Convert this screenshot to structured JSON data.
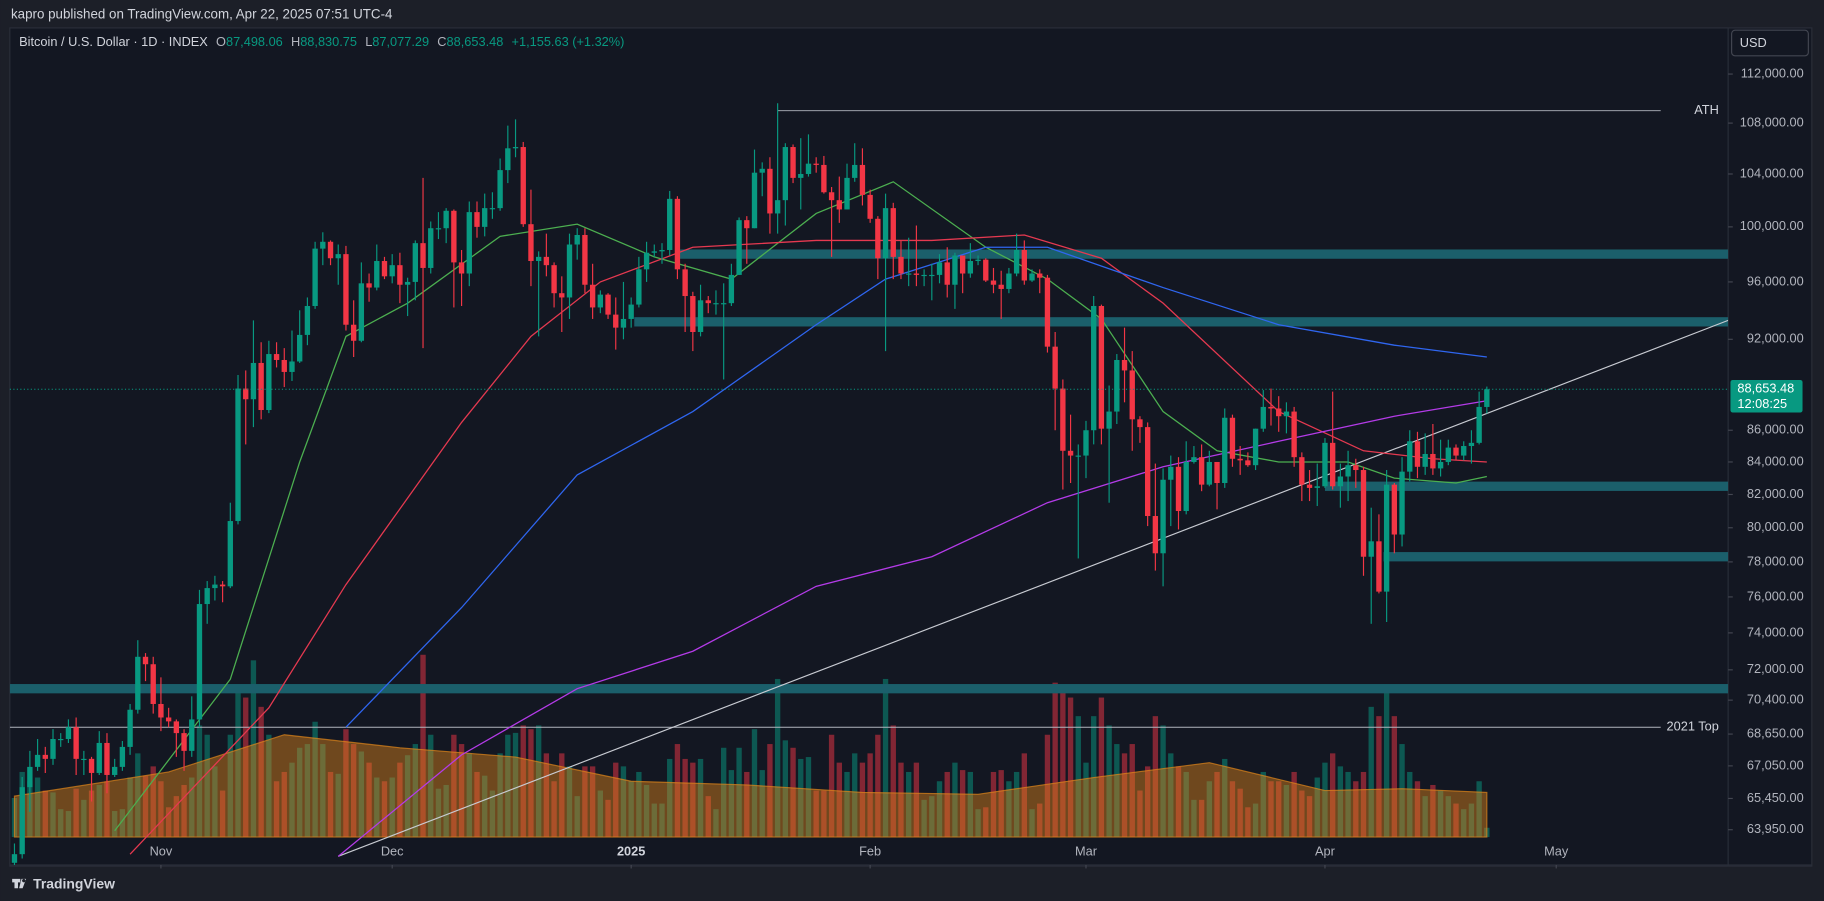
{
  "header": "kapro published on TradingView.com, Apr 22, 2025 07:51 UTC-4",
  "footer": "TradingView",
  "chart_data": {
    "type": "candlestick",
    "title": "Bitcoin / U.S. Dollar · 1D · INDEX",
    "legend": [
      {
        "label": "O",
        "value": "87,498.06"
      },
      {
        "label": "H",
        "value": "88,830.75"
      },
      {
        "label": "L",
        "value": "87,077.29"
      },
      {
        "label": "C",
        "value": "88,653.48"
      }
    ],
    "change": "+1,155.63 (+1.32%)",
    "currency": "USD",
    "up_color": "#089981",
    "down_color": "#f23645",
    "log": true,
    "xlim": [
      -0.6,
      222.3
    ],
    "xticks": [
      {
        "value": 19,
        "label": "Nov"
      },
      {
        "value": 49,
        "label": "Dec"
      },
      {
        "value": 80,
        "label": "2025"
      },
      {
        "value": 111,
        "label": "Feb"
      },
      {
        "value": 139,
        "label": "Mar"
      },
      {
        "value": 170,
        "label": "Apr"
      },
      {
        "value": 200,
        "label": "May"
      }
    ],
    "ylim": [
      62300,
      115900
    ],
    "yticks": [
      {
        "value": 112000,
        "label": "112,000.00"
      },
      {
        "value": 108000,
        "label": "108,000.00"
      },
      {
        "value": 104000,
        "label": "104,000.00"
      },
      {
        "value": 100000,
        "label": "100,000.00"
      },
      {
        "value": 96000,
        "label": "96,000.00"
      },
      {
        "value": 92000,
        "label": "92,000.00"
      },
      {
        "value": 86000,
        "label": "86,000.00"
      },
      {
        "value": 84000,
        "label": "84,000.00"
      },
      {
        "value": 82000,
        "label": "82,000.00"
      },
      {
        "value": 80000,
        "label": "80,000.00"
      },
      {
        "value": 78000,
        "label": "78,000.00"
      },
      {
        "value": 76000,
        "label": "76,000.00"
      },
      {
        "value": 74000,
        "label": "74,000.00"
      },
      {
        "value": 72000,
        "label": "72,000.00"
      },
      {
        "value": 70400,
        "label": "70,400.00"
      },
      {
        "value": 68650,
        "label": "68,650.00"
      },
      {
        "value": 67050,
        "label": "67,050.00"
      },
      {
        "value": 65450,
        "label": "65,450.00"
      },
      {
        "value": 63950,
        "label": "63,950.00"
      }
    ],
    "last_price": {
      "value": 88653.48,
      "label": "88,653.48",
      "countdown": "12:08:25",
      "color": "#089981"
    },
    "open": [
      62400,
      62800,
      66000,
      67000,
      67600,
      67400,
      68400,
      68400,
      69000,
      67400,
      67400,
      66700,
      68200,
      66600,
      67000,
      68000,
      69900,
      72700,
      72300,
      70200,
      69500,
      69300,
      68700,
      67800,
      69400,
      75600,
      76500,
      76700,
      76600,
      80400,
      88700,
      88000,
      90400,
      87300,
      91000,
      90600,
      89800,
      90500,
      92300,
      94300,
      98400,
      98900,
      97700,
      98000,
      93000,
      91900,
      95900,
      95600,
      97500,
      96400,
      97200,
      95800,
      96000,
      98800,
      97000,
      99900,
      99900,
      101200,
      97400,
      96600,
      101100,
      100000,
      101400,
      101400,
      104300,
      106000,
      106100,
      100200,
      97500,
      97800,
      97200,
      95200,
      94900,
      98700,
      99400,
      95800,
      94200,
      95100,
      93700,
      92800,
      93400,
      94400,
      96900,
      98100,
      98200,
      98300,
      102100,
      96900,
      95000,
      92500,
      94700,
      94500,
      94500,
      94500,
      96500,
      100500,
      99900,
      104100,
      104400,
      101000,
      102000,
      106100,
      103700,
      104000,
      104800,
      104700,
      102600,
      102000,
      101300,
      103700,
      104700,
      102400,
      100600,
      97700,
      101400,
      97800,
      96600,
      96600,
      96500,
      96500,
      96500,
      97400,
      95800,
      97900,
      96600,
      97500,
      97600,
      96100,
      95800,
      95500,
      96600,
      98300,
      96100,
      96600,
      96300,
      91500,
      88700,
      84700,
      84400,
      84400,
      86000,
      94300,
      86100,
      87200,
      90600,
      89900,
      86700,
      86200,
      80700,
      78500,
      82900,
      83700,
      81000,
      84000,
      84300,
      82600,
      84000,
      82700,
      86800,
      84200,
      84100,
      83800,
      86100,
      87500,
      87400,
      86900,
      87200,
      84300,
      82600,
      82400,
      82500,
      85200,
      82500,
      83100,
      83800,
      83500,
      78300,
      79200,
      76300,
      82600,
      79600,
      83400,
      85300,
      83700,
      84500,
      83600,
      84000,
      84900,
      84400,
      85000,
      85200,
      87498.06
    ],
    "high": [
      63300,
      66500,
      67800,
      68400,
      68000,
      68900,
      68700,
      69400,
      69500,
      67800,
      67500,
      68800,
      68700,
      67400,
      68300,
      70200,
      73600,
      72900,
      72700,
      71600,
      70000,
      69400,
      68900,
      70600,
      76400,
      76900,
      77200,
      76900,
      81500,
      89600,
      89900,
      93300,
      91800,
      91900,
      91800,
      91400,
      92600,
      94000,
      94900,
      98900,
      99600,
      99000,
      98700,
      98600,
      94700,
      97400,
      96600,
      98700,
      97800,
      98000,
      98100,
      96300,
      99000,
      103700,
      100400,
      101100,
      101400,
      101300,
      98300,
      101900,
      101900,
      102500,
      102600,
      105200,
      107800,
      108300,
      106500,
      102800,
      98200,
      99500,
      97400,
      96400,
      99500,
      99900,
      99900,
      97300,
      95400,
      95200,
      94900,
      96000,
      94900,
      97800,
      98900,
      98700,
      98800,
      102700,
      102300,
      97300,
      95300,
      95800,
      95000,
      95400,
      95900,
      97300,
      100700,
      100800,
      105900,
      104900,
      105300,
      109600,
      106400,
      106300,
      106800,
      107100,
      105300,
      105400,
      103000,
      103800,
      104800,
      106400,
      106000,
      102800,
      100800,
      102500,
      101800,
      99000,
      99200,
      100100,
      96900,
      97300,
      98000,
      98500,
      98100,
      97900,
      98800,
      97900,
      97700,
      97000,
      96800,
      97000,
      99500,
      99000,
      96900,
      96900,
      96500,
      92500,
      89300,
      87000,
      85100,
      86600,
      95000,
      94400,
      88900,
      91000,
      92800,
      91200,
      86900,
      86500,
      83900,
      83600,
      84400,
      84300,
      85300,
      85000,
      85100,
      84700,
      84000,
      87400,
      87000,
      85000,
      84600,
      86100,
      88600,
      88700,
      88200,
      87800,
      87500,
      84600,
      83500,
      83900,
      85500,
      88500,
      83900,
      84700,
      84200,
      83700,
      81200,
      80800,
      83500,
      82700,
      84300,
      86000,
      85900,
      85800,
      86400,
      85400,
      85400,
      85100,
      85300,
      86000,
      88500,
      88830.75
    ],
    "low": [
      62000,
      62600,
      64800,
      66800,
      66700,
      67100,
      68000,
      68200,
      66600,
      66600,
      65300,
      66600,
      65700,
      66500,
      66800,
      67600,
      69700,
      71400,
      69700,
      68800,
      69000,
      67500,
      66800,
      67500,
      69000,
      74500,
      75800,
      75700,
      76500,
      80200,
      85100,
      86200,
      86700,
      87100,
      90100,
      88800,
      89200,
      90400,
      91600,
      94100,
      97200,
      97200,
      95800,
      92600,
      90800,
      91800,
      94600,
      95400,
      96200,
      95900,
      94500,
      93600,
      94700,
      91400,
      96600,
      99100,
      98800,
      94200,
      94300,
      95700,
      99200,
      99300,
      100600,
      101200,
      103300,
      105300,
      100000,
      95700,
      92200,
      96400,
      94200,
      92500,
      93400,
      97600,
      95200,
      93400,
      93800,
      93400,
      91300,
      92000,
      92800,
      94200,
      96000,
      97800,
      97300,
      97900,
      96200,
      92500,
      91200,
      92200,
      93800,
      93700,
      89300,
      94300,
      96500,
      97300,
      99900,
      102300,
      99500,
      99500,
      100100,
      103300,
      101300,
      103800,
      104100,
      102500,
      97800,
      100300,
      101300,
      103400,
      101600,
      100300,
      96200,
      91200,
      96200,
      96200,
      95700,
      95700,
      95700,
      94700,
      95900,
      94900,
      94100,
      95200,
      96300,
      97200,
      96000,
      95200,
      93400,
      95200,
      96400,
      95800,
      96000,
      95200,
      91100,
      86000,
      82300,
      82700,
      78200,
      83000,
      85100,
      85100,
      81500,
      86400,
      87800,
      84700,
      85200,
      80100,
      77500,
      76600,
      80100,
      79900,
      80800,
      83900,
      82200,
      82500,
      81100,
      82400,
      83700,
      83200,
      83700,
      83500,
      85900,
      86300,
      85900,
      85800,
      83700,
      81600,
      81600,
      81300,
      82400,
      82300,
      81200,
      81600,
      82400,
      77200,
      74500,
      76200,
      74600,
      78500,
      78900,
      82800,
      83000,
      83200,
      83200,
      83100,
      83800,
      84100,
      84100,
      83900,
      85100,
      87077.29
    ],
    "close": [
      62800,
      66000,
      67000,
      67600,
      67400,
      68400,
      68400,
      69000,
      67400,
      67400,
      66700,
      68200,
      66600,
      67000,
      68000,
      69900,
      72700,
      72300,
      70200,
      69500,
      69300,
      68700,
      67800,
      69400,
      75600,
      76500,
      76700,
      76600,
      80400,
      88700,
      88000,
      90400,
      87300,
      91000,
      90600,
      89800,
      90500,
      92300,
      94300,
      98400,
      98900,
      97700,
      98000,
      93000,
      91900,
      95900,
      95600,
      97500,
      96400,
      97200,
      95800,
      96000,
      98800,
      97000,
      99900,
      99900,
      101200,
      97400,
      96600,
      101100,
      100000,
      101400,
      101400,
      104300,
      106000,
      106100,
      100200,
      97500,
      97800,
      97200,
      95200,
      94900,
      98700,
      99400,
      95800,
      94200,
      95100,
      93700,
      92800,
      93400,
      94400,
      96900,
      98100,
      98200,
      98300,
      102100,
      96900,
      95000,
      92500,
      94700,
      94500,
      94500,
      94500,
      96500,
      100500,
      99900,
      104100,
      104400,
      101000,
      102000,
      106100,
      103700,
      104000,
      104800,
      104700,
      102600,
      102000,
      101300,
      103700,
      104700,
      102400,
      100600,
      97700,
      101400,
      97800,
      96600,
      96600,
      96500,
      96500,
      96500,
      97400,
      95800,
      97900,
      96600,
      97500,
      97600,
      96100,
      95800,
      95500,
      96600,
      98300,
      96100,
      96600,
      96300,
      91500,
      88700,
      84700,
      84400,
      84400,
      86000,
      94300,
      86100,
      87200,
      90600,
      89900,
      86700,
      86200,
      80700,
      78500,
      82900,
      83700,
      81000,
      84000,
      84300,
      82600,
      84000,
      82700,
      86800,
      84200,
      84100,
      83800,
      86100,
      87500,
      87400,
      86900,
      87200,
      84300,
      82600,
      82400,
      82500,
      85200,
      82500,
      83100,
      83800,
      83500,
      78300,
      79200,
      76300,
      82600,
      79600,
      83400,
      85300,
      83700,
      84500,
      83600,
      84000,
      84900,
      84400,
      85000,
      85200,
      87500,
      88653.48
    ],
    "volume": [
      2.1,
      3.5,
      3.0,
      3.2,
      2.5,
      2.4,
      1.5,
      1.4,
      2.6,
      2.0,
      2.5,
      2.8,
      3.0,
      1.4,
      1.5,
      3.2,
      4.5,
      3.3,
      3.8,
      3.0,
      1.6,
      2.2,
      2.8,
      3.2,
      6.0,
      5.5,
      3.8,
      2.5,
      5.5,
      8.0,
      7.5,
      9.5,
      7.0,
      5.5,
      3.0,
      3.5,
      4.0,
      4.8,
      5.0,
      6.2,
      5.0,
      3.5,
      3.4,
      5.8,
      5.0,
      4.6,
      4.0,
      3.2,
      3.0,
      3.2,
      4.0,
      4.4,
      5.0,
      9.8,
      5.5,
      2.6,
      2.8,
      5.5,
      5.0,
      4.5,
      3.5,
      3.3,
      2.5,
      4.5,
      5.5,
      5.6,
      6.0,
      5.8,
      6.0,
      4.5,
      3.0,
      4.5,
      3.8,
      2.2,
      3.8,
      3.8,
      2.5,
      2.0,
      4.0,
      3.8,
      3.0,
      3.5,
      2.8,
      1.8,
      1.8,
      4.2,
      5.0,
      4.2,
      4.0,
      4.2,
      2.2,
      1.5,
      4.8,
      3.6,
      4.8,
      3.5,
      5.8,
      3.6,
      5.0,
      8.5,
      5.2,
      4.8,
      4.2,
      4.3,
      2.5,
      2.5,
      5.5,
      4.0,
      3.5,
      4.5,
      4.0,
      4.5,
      5.5,
      8.5,
      6.0,
      4.0,
      3.5,
      4.0,
      2.0,
      2.2,
      3.0,
      3.5,
      4.0,
      3.6,
      3.5,
      1.5,
      1.6,
      3.5,
      3.6,
      3.0,
      3.5,
      4.5,
      1.5,
      1.8,
      5.5,
      8.3,
      8.0,
      7.5,
      6.5,
      4.0,
      6.5,
      7.5,
      6.0,
      5.0,
      4.5,
      5.0,
      2.5,
      3.8,
      6.5,
      6.0,
      4.5,
      3.8,
      3.5,
      2.0,
      2.0,
      3.0,
      3.5,
      4.2,
      3.0,
      2.6,
      1.6,
      1.8,
      3.5,
      3.0,
      3.0,
      2.8,
      3.5,
      2.5,
      2.2,
      3.2,
      4.0,
      4.5,
      3.8,
      3.5,
      3.0,
      3.5,
      7.0,
      6.5,
      8.0,
      6.5,
      5.0,
      3.5,
      3.0,
      2.2,
      2.8,
      2.5,
      2.2,
      1.8,
      1.5,
      1.8,
      3.0,
      0.5
    ],
    "volume_ma": {
      "color": "#e0861a",
      "x": [
        0,
        20,
        35,
        50,
        65,
        80,
        95,
        110,
        125,
        140,
        155,
        170,
        180,
        191
      ],
      "values": [
        2.2,
        3.5,
        5.5,
        4.8,
        4.3,
        3.0,
        2.8,
        2.4,
        2.3,
        3.2,
        4.0,
        2.5,
        2.6,
        2.4
      ]
    },
    "moving_averages": [
      {
        "color": "#4caf50",
        "x": [
          13,
          28,
          37,
          43,
          51,
          63,
          73,
          83,
          93,
          104,
          114,
          126,
          134,
          141,
          149,
          156,
          164,
          173,
          179,
          187,
          191
        ],
        "values": [
          63900,
          71500,
          84000,
          92200,
          94500,
          99300,
          100200,
          97800,
          96200,
          101000,
          103400,
          98500,
          96200,
          93400,
          87200,
          84700,
          84000,
          84000,
          83000,
          82700,
          83100
        ]
      },
      {
        "color": "#e53950",
        "x": [
          15,
          33,
          43,
          58,
          67,
          76,
          88,
          104,
          119,
          131,
          141,
          149,
          164,
          175,
          184,
          191
        ],
        "values": [
          62800,
          70000,
          76700,
          86500,
          92200,
          96000,
          98500,
          99000,
          99000,
          99400,
          97700,
          94500,
          87200,
          84700,
          84200,
          84000
        ]
      },
      {
        "color": "#2f66f0",
        "x": [
          43,
          58,
          73,
          88,
          104,
          113,
          126,
          134,
          149,
          164,
          179,
          191
        ],
        "values": [
          69000,
          75400,
          83200,
          87200,
          93000,
          96200,
          98500,
          98500,
          95600,
          93000,
          91600,
          90800
        ]
      },
      {
        "color": "#b43be8",
        "x": [
          42,
          58,
          73,
          88,
          104,
          119,
          134,
          149,
          164,
          179,
          191
        ],
        "values": [
          62700,
          67600,
          71000,
          73000,
          76600,
          78300,
          81500,
          83700,
          85300,
          86900,
          87900
        ]
      }
    ],
    "zones": [
      {
        "value": 98000,
        "x0": 85.7
      },
      {
        "value": 93200,
        "x0": 80.4
      },
      {
        "value": 82500,
        "x0": 170
      },
      {
        "value": 78300,
        "x0": 177.6
      },
      {
        "value": 71000,
        "x0": -0.6
      }
    ],
    "zone_color": "#1b5f6b",
    "levels": [
      {
        "value": 109000,
        "x0": 99,
        "label": "ATH"
      },
      {
        "value": 69000,
        "x0": -0.6,
        "label": "2021 Top"
      }
    ],
    "trendline": {
      "x": [
        42,
        222.3
      ],
      "values": [
        62700,
        93300
      ]
    }
  }
}
